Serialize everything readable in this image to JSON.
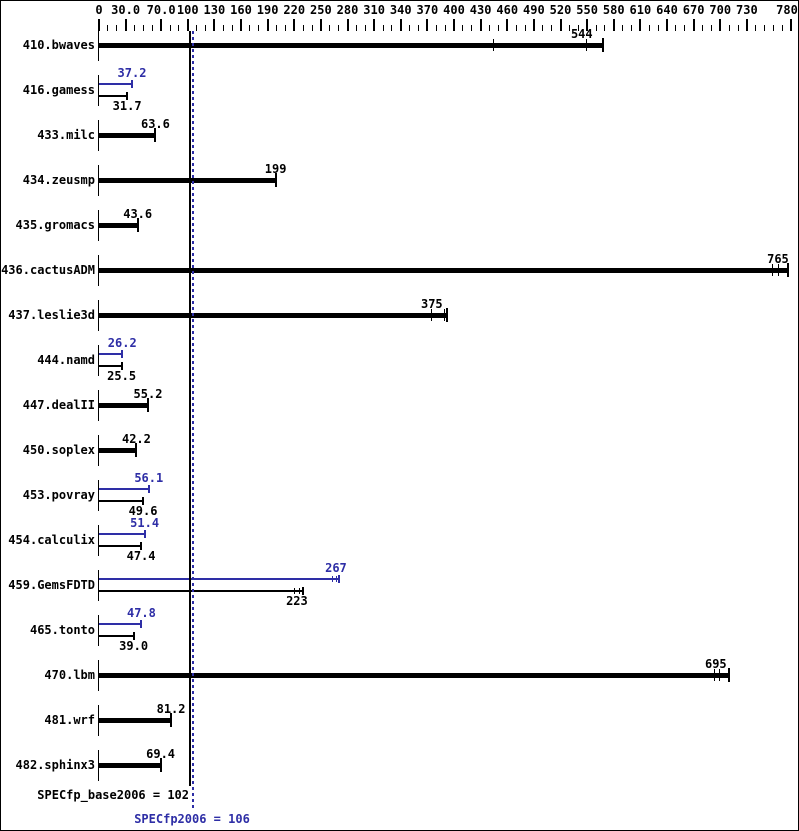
{
  "colors": {
    "base": "#000000",
    "peak": "#2e2ea6",
    "background": "#ffffff"
  },
  "axis": {
    "min": 0,
    "max": 780,
    "minor_step": 10,
    "labels": [
      {
        "value": 0,
        "text": "0"
      },
      {
        "value": 30,
        "text": "30.0"
      },
      {
        "value": 70,
        "text": "70.0"
      },
      {
        "value": 100,
        "text": "100"
      },
      {
        "value": 130,
        "text": "130"
      },
      {
        "value": 160,
        "text": "160"
      },
      {
        "value": 190,
        "text": "190"
      },
      {
        "value": 220,
        "text": "220"
      },
      {
        "value": 250,
        "text": "250"
      },
      {
        "value": 280,
        "text": "280"
      },
      {
        "value": 310,
        "text": "310"
      },
      {
        "value": 340,
        "text": "340"
      },
      {
        "value": 370,
        "text": "370"
      },
      {
        "value": 400,
        "text": "400"
      },
      {
        "value": 430,
        "text": "430"
      },
      {
        "value": 460,
        "text": "460"
      },
      {
        "value": 490,
        "text": "490"
      },
      {
        "value": 520,
        "text": "520"
      },
      {
        "value": 550,
        "text": "550"
      },
      {
        "value": 580,
        "text": "580"
      },
      {
        "value": 610,
        "text": "610"
      },
      {
        "value": 640,
        "text": "640"
      },
      {
        "value": 670,
        "text": "670"
      },
      {
        "value": 700,
        "text": "700"
      },
      {
        "value": 730,
        "text": "730"
      },
      {
        "value": 780,
        "text": "780"
      }
    ]
  },
  "reference_lines": [
    {
      "name": "base",
      "value": 102,
      "style": "solid",
      "color": "#000000"
    },
    {
      "name": "peak",
      "value": 106,
      "style": "dotted",
      "color": "#2e2ea6"
    }
  ],
  "footer": {
    "base_label": "SPECfp_base2006 = 102",
    "peak_label": "SPECfp2006 = 106"
  },
  "chart_data": {
    "type": "bar",
    "orientation": "horizontal",
    "title": "",
    "xlabel": "",
    "ylabel": "",
    "xlim": [
      0,
      780
    ],
    "grid": false,
    "legend": "none",
    "benchmarks": [
      {
        "name": "410.bwaves",
        "base": 544,
        "base_label": "544",
        "base_marks": [
          444,
          549
        ],
        "base_end": 568
      },
      {
        "name": "416.gamess",
        "peak": 37.2,
        "peak_label": "37.2",
        "base": 31.7,
        "base_label": "31.7"
      },
      {
        "name": "433.milc",
        "base": 63.6,
        "base_label": "63.6"
      },
      {
        "name": "434.zeusmp",
        "base": 199,
        "base_label": "199"
      },
      {
        "name": "435.gromacs",
        "base": 43.6,
        "base_label": "43.6"
      },
      {
        "name": "436.cactusADM",
        "base": 765,
        "base_label": "765",
        "base_marks": [
          758,
          765
        ],
        "base_end": 776
      },
      {
        "name": "437.leslie3d",
        "base": 375,
        "base_label": "375",
        "base_marks": [
          374,
          389
        ],
        "base_end": 392
      },
      {
        "name": "444.namd",
        "peak": 26.2,
        "peak_label": "26.2",
        "base": 25.5,
        "base_label": "25.5"
      },
      {
        "name": "447.dealII",
        "base": 55.2,
        "base_label": "55.2"
      },
      {
        "name": "450.soplex",
        "base": 42.2,
        "base_label": "42.2"
      },
      {
        "name": "453.povray",
        "peak": 56.1,
        "peak_label": "56.1",
        "base": 49.6,
        "base_label": "49.6"
      },
      {
        "name": "454.calculix",
        "peak": 51.4,
        "peak_label": "51.4",
        "base": 47.4,
        "base_label": "47.4"
      },
      {
        "name": "459.GemsFDTD",
        "peak": 267,
        "peak_label": "267",
        "peak_marks": [
          263,
          267
        ],
        "peak_end": 270,
        "base": 223,
        "base_label": "223",
        "base_marks": [
          220,
          225
        ],
        "base_end": 230
      },
      {
        "name": "465.tonto",
        "peak": 47.8,
        "peak_label": "47.8",
        "base": 39.0,
        "base_label": "39.0"
      },
      {
        "name": "470.lbm",
        "base": 695,
        "base_label": "695",
        "base_marks": [
          693,
          699
        ],
        "base_end": 710
      },
      {
        "name": "481.wrf",
        "base": 81.2,
        "base_label": "81.2"
      },
      {
        "name": "482.sphinx3",
        "base": 69.4,
        "base_label": "69.4"
      }
    ]
  }
}
